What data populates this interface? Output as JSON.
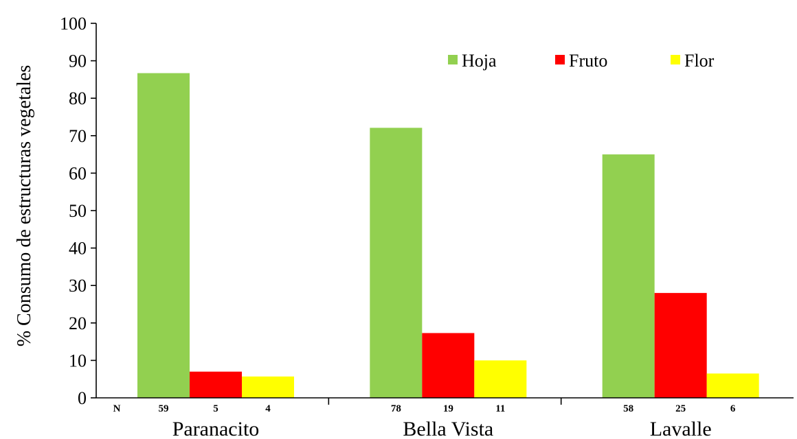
{
  "chart_data": {
    "type": "bar",
    "categories": [
      "Paranacito",
      "Bella Vista",
      "Lavalle"
    ],
    "series": [
      {
        "name": "Hoja",
        "color": "#92D050",
        "values": [
          86.7,
          72.1,
          65.0
        ]
      },
      {
        "name": "Fruto",
        "color": "#FF0000",
        "values": [
          7.0,
          17.3,
          28.0
        ]
      },
      {
        "name": "Flor",
        "color": "#FFFF00",
        "values": [
          5.7,
          10.0,
          6.5
        ]
      }
    ],
    "n_label": "N",
    "n_counts": [
      [
        "59",
        "5",
        "4"
      ],
      [
        "78",
        "19",
        "11"
      ],
      [
        "58",
        "25",
        "6"
      ]
    ],
    "ylabel": "% Consumo de estructuras vegetales",
    "xlabel": "",
    "ylim": [
      0,
      100
    ],
    "yticks": [
      0,
      10,
      20,
      30,
      40,
      50,
      60,
      70,
      80,
      90,
      100
    ],
    "grid": false,
    "legend_position": "top-right"
  }
}
